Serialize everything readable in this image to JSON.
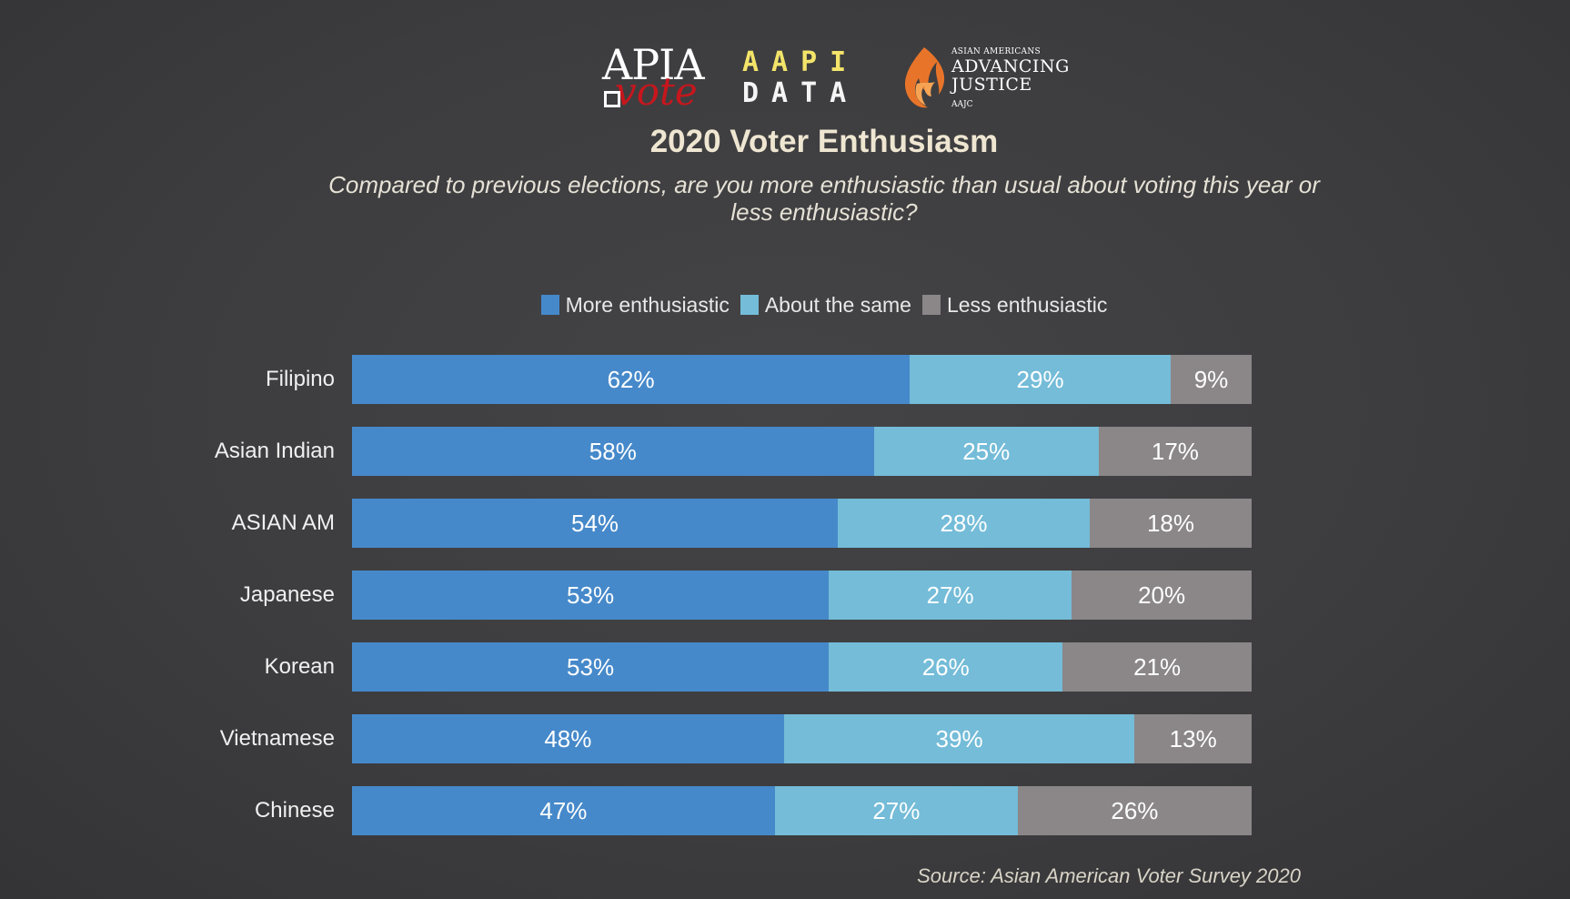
{
  "logos": {
    "apia_vote": {
      "line1": "APIA",
      "line2": "vote"
    },
    "aapi_data": {
      "line1": "AAPI",
      "line2": "DATA"
    },
    "aajc": {
      "tagline": "ASIAN AMERICANS",
      "line1": "ADVANCING",
      "line2": "JUSTICE",
      "abbr": "AAJC"
    }
  },
  "chart_data": {
    "type": "bar",
    "orientation": "horizontal",
    "stacked": true,
    "title": "2020 Voter Enthusiasm",
    "subtitle": "Compared to previous elections, are you more enthusiastic than usual about voting this year or less enthusiastic?",
    "categories": [
      "Filipino",
      "Asian Indian",
      "ASIAN AM",
      "Japanese",
      "Korean",
      "Vietnamese",
      "Chinese"
    ],
    "series": [
      {
        "name": "More enthusiastic",
        "color": "#4689ca",
        "values": [
          62,
          58,
          54,
          53,
          53,
          48,
          47
        ],
        "labels": [
          "62%",
          "58%",
          "54%",
          "53%",
          "53%",
          "48%",
          "47%"
        ]
      },
      {
        "name": "About the same",
        "color": "#74bcd8",
        "values": [
          29,
          25,
          28,
          27,
          26,
          39,
          27
        ],
        "labels": [
          "29%",
          "25%",
          "28%",
          "27%",
          "26%",
          "39%",
          "27%"
        ]
      },
      {
        "name": "Less enthusiastic",
        "color": "#8b8788",
        "values": [
          9,
          17,
          18,
          20,
          21,
          13,
          26
        ],
        "labels": [
          "9%",
          "17%",
          "18%",
          "20%",
          "21%",
          "13%",
          "26%"
        ]
      }
    ],
    "xlim": [
      0,
      100
    ],
    "legend_position": "top-center",
    "grid": false,
    "source": "Source: Asian American Voter Survey 2020"
  }
}
